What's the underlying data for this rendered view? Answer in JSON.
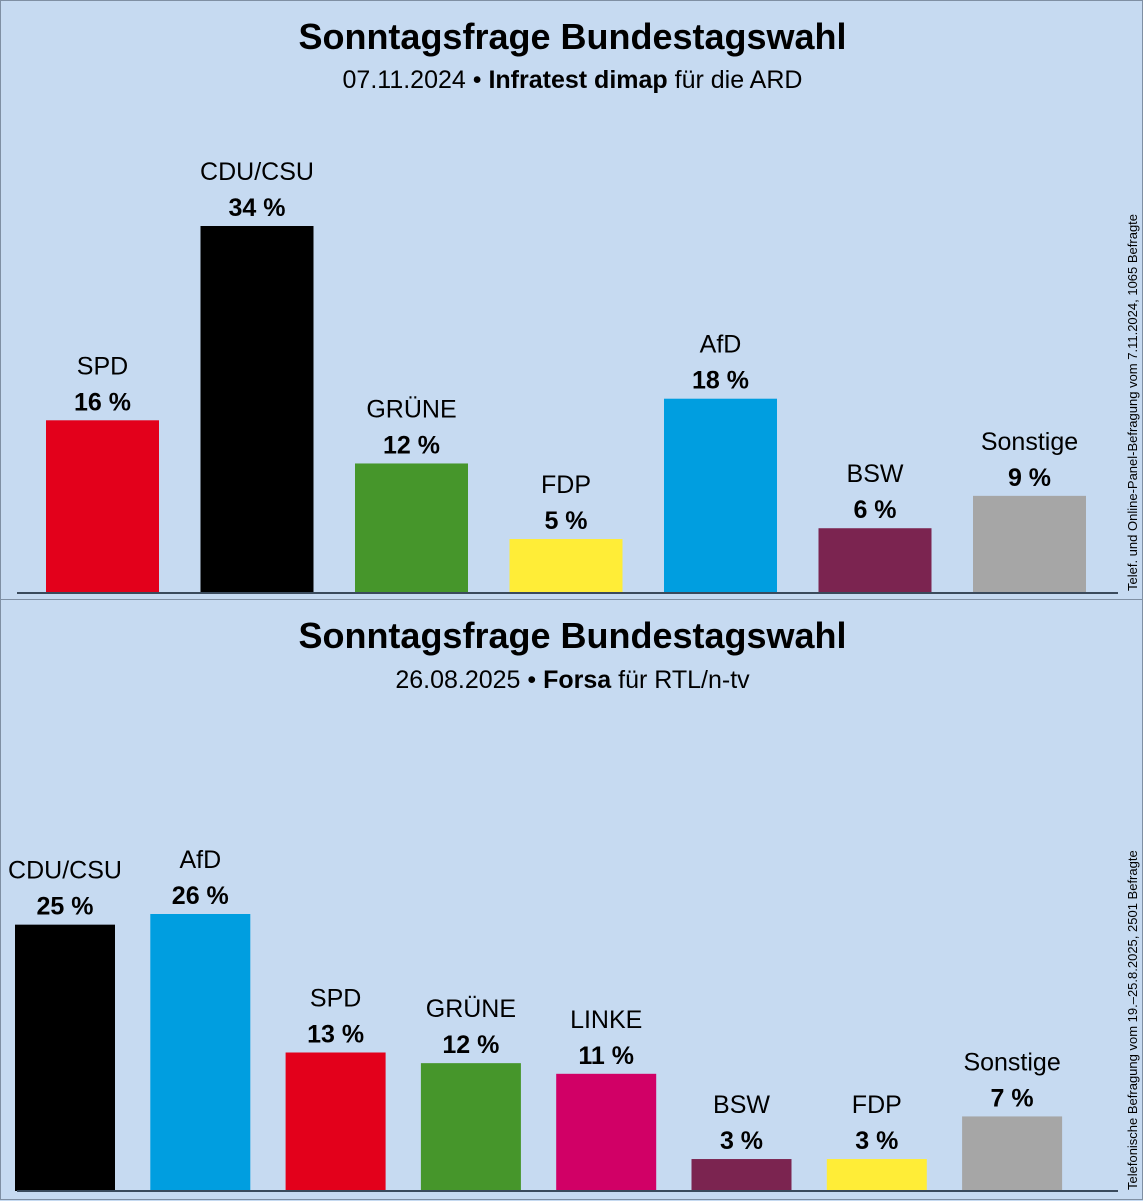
{
  "chart_data": [
    {
      "type": "bar",
      "title": "Sonntagsfrage Bundestagswahl",
      "subtitle": {
        "date": "07.11.2024",
        "separator": "•",
        "institute": "Infratest dimap",
        "client": "für die ARD"
      },
      "note": "Telef. und Online-Panel-Befragung vom 7.11.2024, 1065 Befragte",
      "categories": [
        "SPD",
        "CDU/CSU",
        "GRÜNE",
        "FDP",
        "AfD",
        "BSW",
        "Sonstige"
      ],
      "values": [
        16,
        34,
        12,
        5,
        18,
        6,
        9
      ],
      "value_labels": [
        "16 %",
        "34 %",
        "12 %",
        "5 %",
        "18 %",
        "6 %",
        "9 %"
      ],
      "colors": [
        "#e3001b",
        "#000000",
        "#46962b",
        "#ffed37",
        "#009ee0",
        "#7b2450",
        "#a6a6a6"
      ],
      "ylim": [
        0,
        34
      ],
      "xlabel": "",
      "ylabel": ""
    },
    {
      "type": "bar",
      "title": "Sonntagsfrage Bundestagswahl",
      "subtitle": {
        "date": "26.08.2025",
        "separator": "•",
        "institute": "Forsa",
        "client": "für RTL/n-tv"
      },
      "note": "Telefonische Befragung vom 19.–25.8.2025, 2501 Befragte",
      "categories": [
        "CDU/CSU",
        "AfD",
        "SPD",
        "GRÜNE",
        "LINKE",
        "BSW",
        "FDP",
        "Sonstige"
      ],
      "values": [
        25,
        26,
        13,
        12,
        11,
        3,
        3,
        7
      ],
      "value_labels": [
        "25 %",
        "26 %",
        "13 %",
        "12 %",
        "11 %",
        "3 %",
        "3 %",
        "7 %"
      ],
      "colors": [
        "#000000",
        "#009ee0",
        "#e3001b",
        "#46962b",
        "#d10066",
        "#7b2450",
        "#ffed37",
        "#a6a6a6"
      ],
      "ylim": [
        0,
        26
      ],
      "xlabel": "",
      "ylabel": ""
    }
  ]
}
